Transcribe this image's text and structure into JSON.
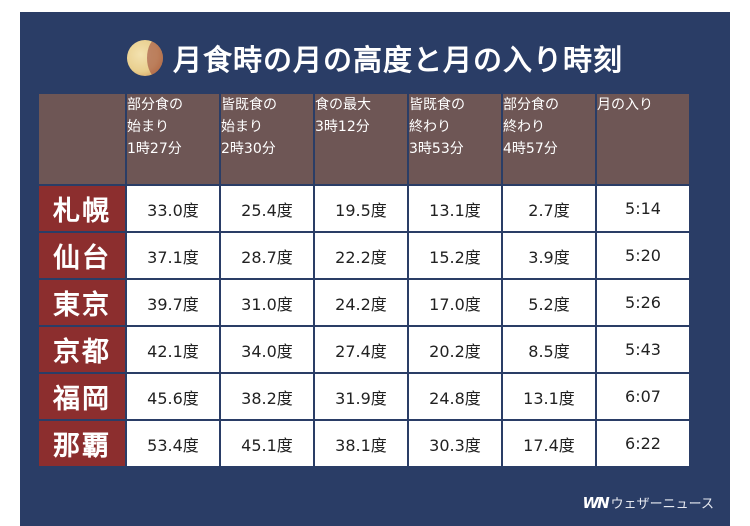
{
  "title": "月食時の月の高度と月の入り時刻",
  "columns": [
    {
      "lines": [
        "部分食の",
        "始まり",
        "1時27分"
      ]
    },
    {
      "lines": [
        "皆既食の",
        "始まり",
        "2時30分"
      ]
    },
    {
      "lines": [
        "食の最大",
        "3時12分"
      ]
    },
    {
      "lines": [
        "皆既食の",
        "終わり",
        "3時53分"
      ]
    },
    {
      "lines": [
        "部分食の",
        "終わり",
        "4時57分"
      ]
    },
    {
      "lines": [
        "月の入り"
      ]
    }
  ],
  "rows": [
    {
      "city": "札幌",
      "values": [
        "33.0度",
        "25.4度",
        "19.5度",
        "13.1度",
        "2.7度",
        "5:14"
      ]
    },
    {
      "city": "仙台",
      "values": [
        "37.1度",
        "28.7度",
        "22.2度",
        "15.2度",
        "3.9度",
        "5:20"
      ]
    },
    {
      "city": "東京",
      "values": [
        "39.7度",
        "31.0度",
        "24.2度",
        "17.0度",
        "5.2度",
        "5:26"
      ]
    },
    {
      "city": "京都",
      "values": [
        "42.1度",
        "34.0度",
        "27.4度",
        "20.2度",
        "8.5度",
        "5:43"
      ]
    },
    {
      "city": "福岡",
      "values": [
        "45.6度",
        "38.2度",
        "31.9度",
        "24.8度",
        "13.1度",
        "6:07"
      ]
    },
    {
      "city": "那覇",
      "values": [
        "53.4度",
        "45.1度",
        "38.1度",
        "30.3度",
        "17.4度",
        "6:22"
      ]
    }
  ],
  "brand": {
    "logo": "WN",
    "name": "ウェザーニュース"
  },
  "colors": {
    "background": "#2a3d66",
    "header": "#6e5655",
    "city": "#8c2e2e",
    "cell": "#ffffff"
  },
  "icons": {
    "title": "moon-icon"
  }
}
